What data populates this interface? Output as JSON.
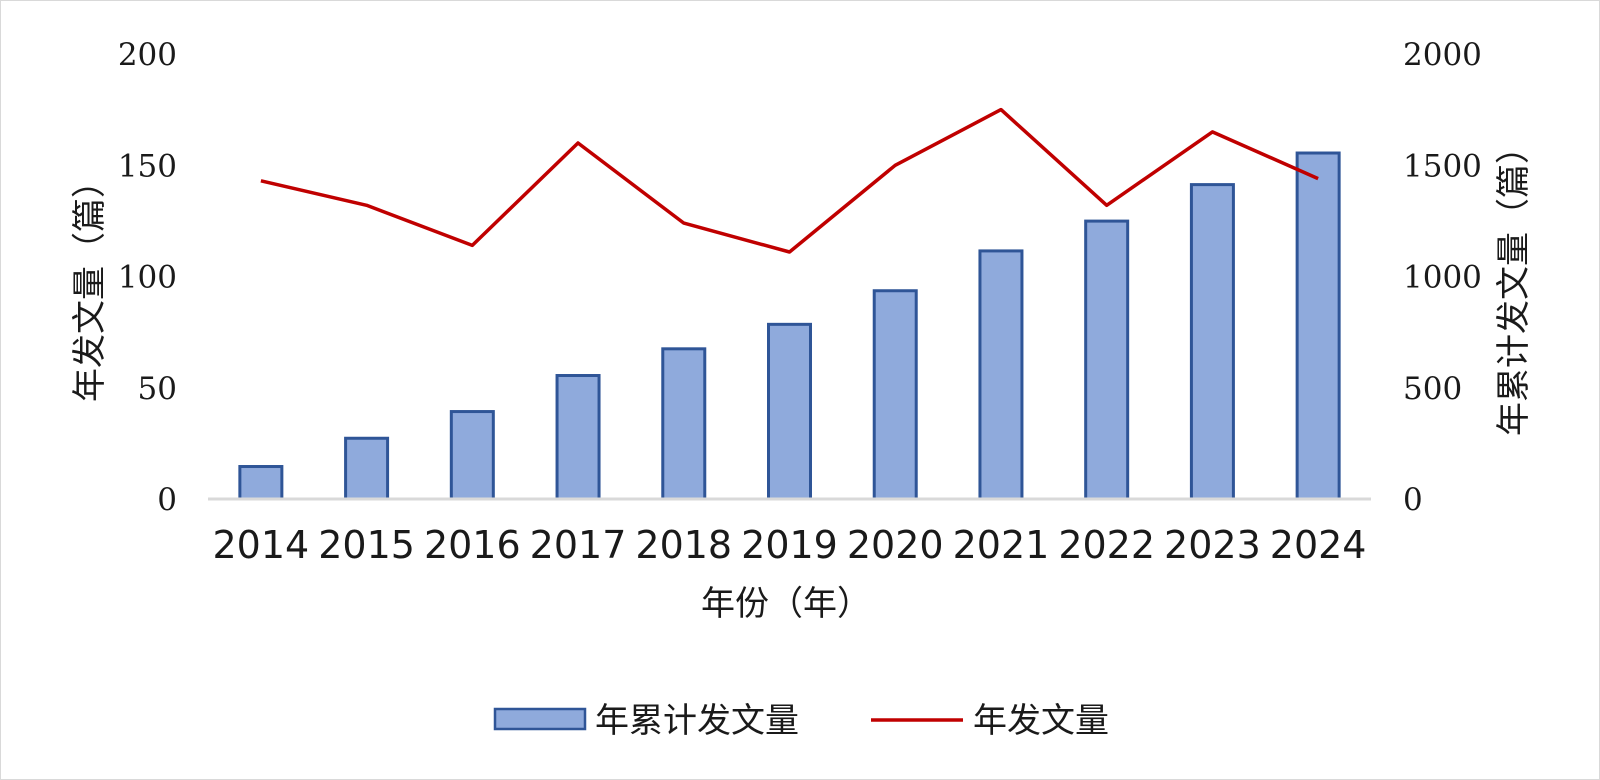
{
  "chart_data": {
    "type": "bar",
    "categories": [
      "2014",
      "2015",
      "2016",
      "2017",
      "2018",
      "2019",
      "2020",
      "2021",
      "2022",
      "2023",
      "2024"
    ],
    "series": [
      {
        "name": "年累计发文量",
        "type": "bar",
        "axis": "right",
        "color": "#8faadc",
        "stroke": "#2f5597",
        "values": [
          146,
          273,
          393,
          555,
          675,
          785,
          936,
          1115,
          1249,
          1413,
          1555
        ]
      },
      {
        "name": "年发文量",
        "type": "line",
        "axis": "left",
        "color": "#c00000",
        "values": [
          143,
          132,
          114,
          160,
          124,
          111,
          150,
          175,
          132,
          165,
          144
        ]
      }
    ],
    "xlabel": "年份（年）",
    "ylabel": "年发文量（篇）",
    "y2label": "年累计发文量（篇）",
    "ylim": [
      0,
      200
    ],
    "y2lim": [
      0,
      2000
    ],
    "yticks": [
      "0",
      "50",
      "100",
      "150",
      "200"
    ],
    "y2ticks": [
      "0",
      "500",
      "1000",
      "1500",
      "2000"
    ],
    "grid": false,
    "legend_position": "bottom"
  }
}
